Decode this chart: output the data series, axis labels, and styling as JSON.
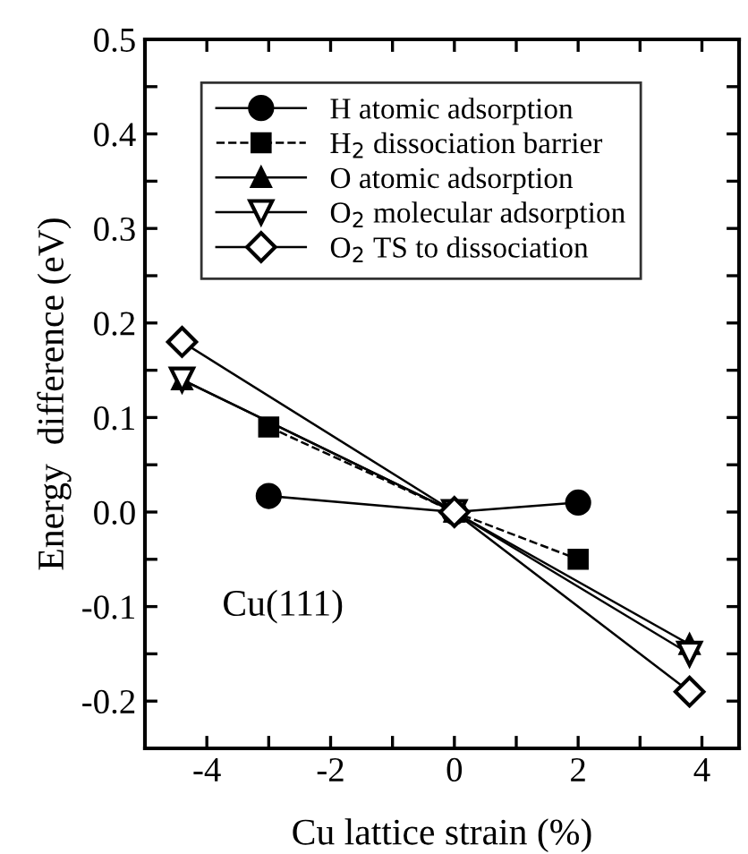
{
  "chart_data": {
    "type": "line",
    "xlabel": "Cu lattice strain (%)",
    "ylabel": "Energy  difference (eV)",
    "xlim": [
      -5,
      4.6
    ],
    "ylim": [
      -0.25,
      0.5
    ],
    "xticks": [
      -4,
      {
        "value": -3,
        "label": null
      },
      -2,
      {
        "value": -1,
        "label": null
      },
      0,
      {
        "value": 1,
        "label": null
      },
      2,
      {
        "value": 3,
        "label": null
      },
      4
    ],
    "yticks": [
      {
        "value": -0.25,
        "label": null
      },
      -0.2,
      {
        "value": -0.15,
        "label": null
      },
      -0.1,
      {
        "value": -0.05,
        "label": null
      },
      {
        "value": 0,
        "label": "0.0"
      },
      {
        "value": 0.05,
        "label": null
      },
      0.1,
      {
        "value": 0.15,
        "label": null
      },
      0.2,
      {
        "value": 0.25,
        "label": null
      },
      0.3,
      {
        "value": 0.35,
        "label": null
      },
      0.4,
      {
        "value": 0.45,
        "label": null
      },
      0.5
    ],
    "grid": false,
    "legend": "top left",
    "annotations": [
      "Cu(111)"
    ],
    "series": [
      {
        "name": "H atomic adsorption",
        "color": "#000000",
        "x": [
          -3,
          0,
          2
        ],
        "values": [
          0.017,
          0,
          0.01
        ],
        "marker": "circle",
        "line_style": "solid"
      },
      {
        "name": "H$_{2}$ dissociation barrier",
        "color": "#000000",
        "x": [
          -3,
          0,
          2
        ],
        "values": [
          0.09,
          0,
          -0.05
        ],
        "marker": "square",
        "line_style": "dashed"
      },
      {
        "name": "O atomic adsorption",
        "color": "#000000",
        "x": [
          -4.4,
          0,
          3.8
        ],
        "values": [
          0.14,
          0,
          -0.14
        ],
        "marker": "triangle",
        "line_style": "solid"
      },
      {
        "name": "O$_{2}$ molecular adsorption",
        "color": "#000000",
        "x": [
          -4.4,
          0,
          3.8
        ],
        "values": [
          0.14,
          0,
          -0.15
        ],
        "marker": "triangle_down_open",
        "line_style": "solid"
      },
      {
        "name": "O$_{2}$ TS to dissociation",
        "color": "#000000",
        "x": [
          -4.4,
          0,
          3.8
        ],
        "values": [
          0.18,
          0,
          -0.19
        ],
        "marker": "diamond_open",
        "line_style": "solid"
      }
    ]
  }
}
